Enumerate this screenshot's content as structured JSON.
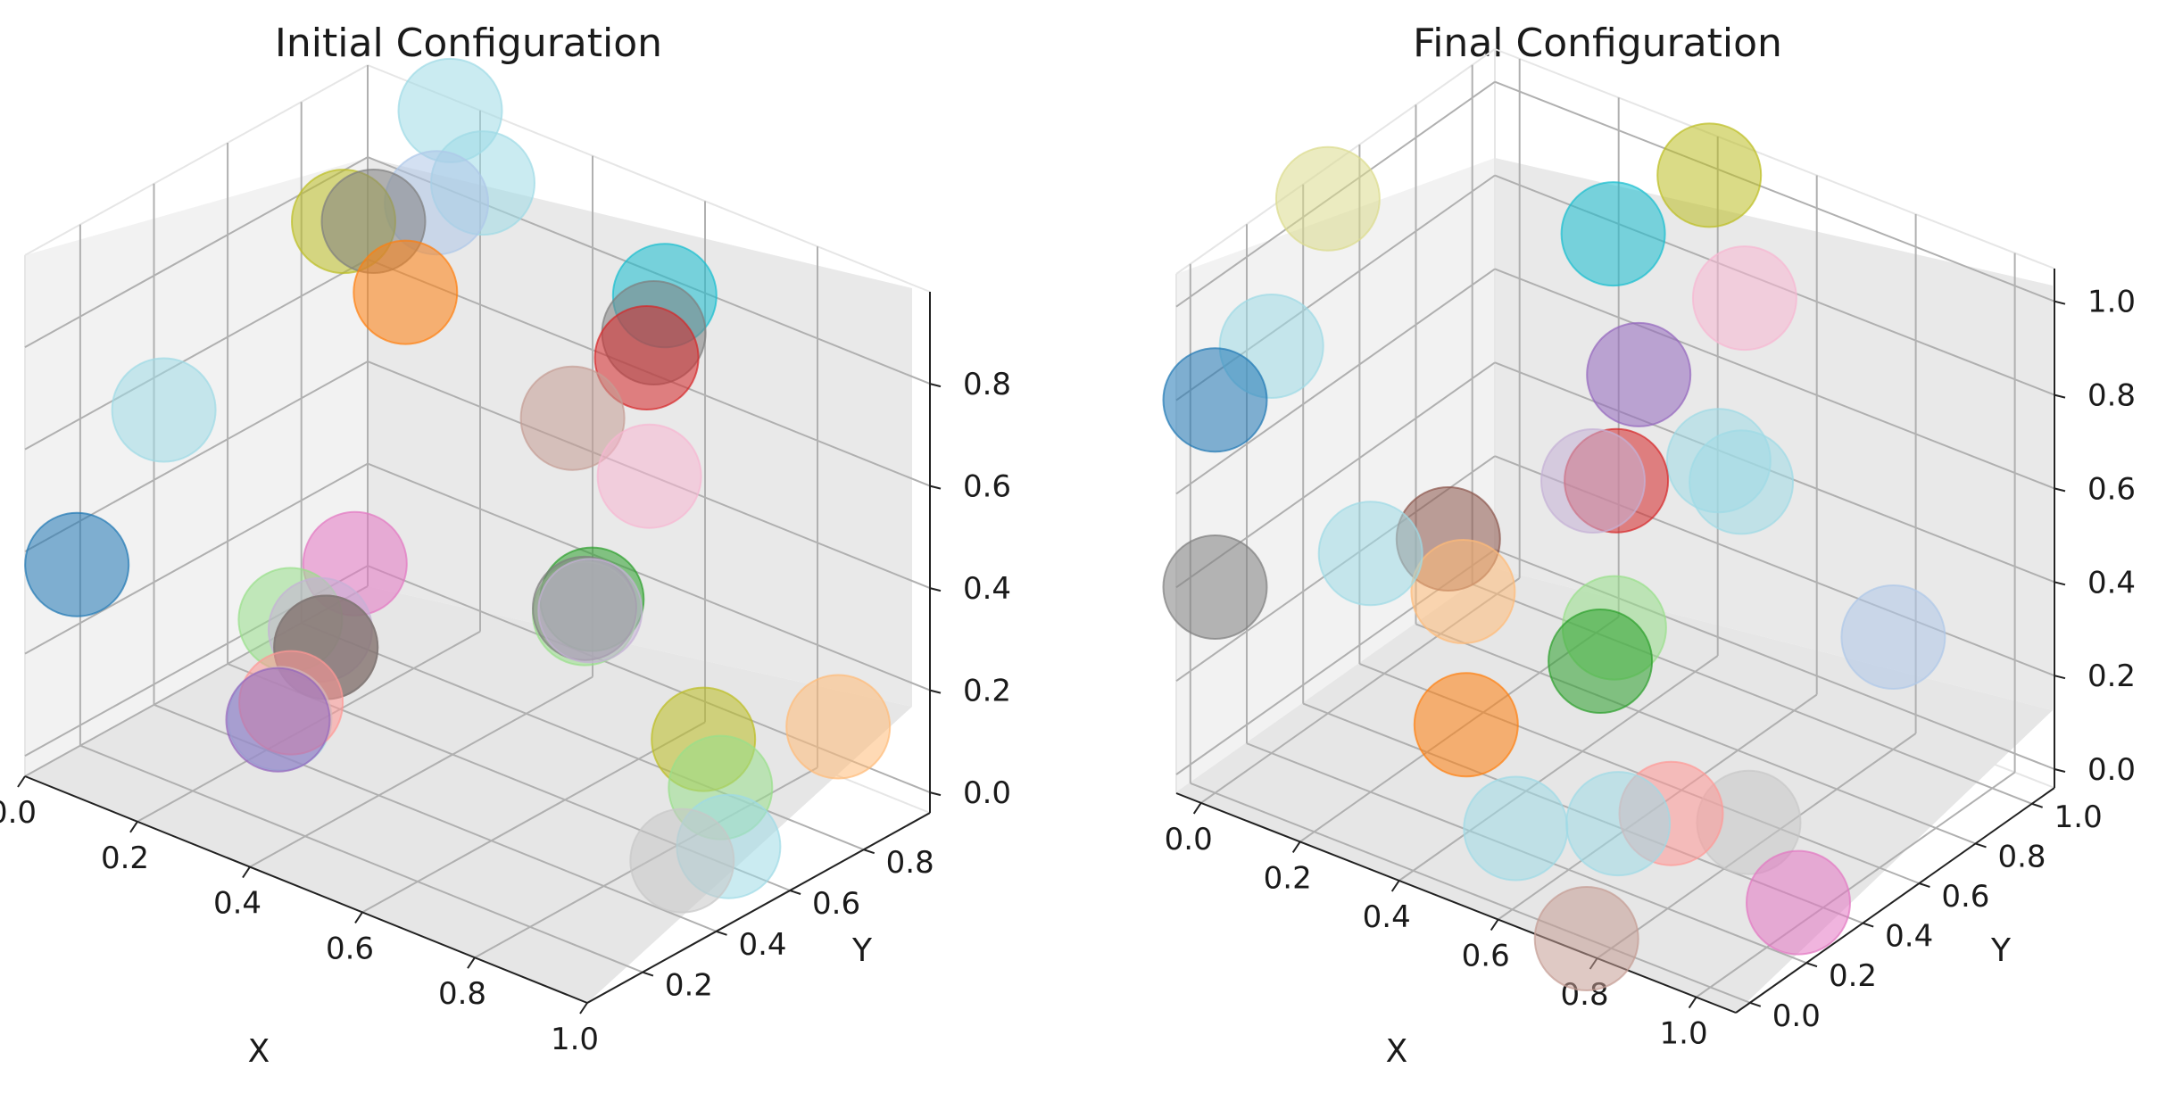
{
  "chart_data": [
    {
      "type": "scatter",
      "title": "Initial Configuration",
      "xlabel": "X",
      "ylabel": "Y",
      "xticks": [
        "0.0",
        "0.2",
        "0.4",
        "0.6",
        "0.8",
        "1.0"
      ],
      "yticks": [
        "0.2",
        "0.4",
        "0.6",
        "0.8"
      ],
      "zticks": [
        "0.0",
        "0.2",
        "0.4",
        "0.6",
        "0.8"
      ],
      "xlim": [
        0,
        1
      ],
      "ylim": [
        0.05,
        0.98
      ],
      "zlim": [
        -0.04,
        0.98
      ],
      "points": [
        {
          "color": "#1f77b4",
          "x": 0.04,
          "y": 0.13,
          "z": 0.36
        },
        {
          "color": "#9edae5",
          "x": 0.07,
          "y": 0.32,
          "z": 0.6
        },
        {
          "color": "#9467bd",
          "x": 0.45,
          "y": 0.05,
          "z": 0.27
        },
        {
          "color": "#9edae5",
          "x": 0.44,
          "y": 0.07,
          "z": 0.26
        },
        {
          "color": "#ff9896",
          "x": 0.46,
          "y": 0.07,
          "z": 0.3
        },
        {
          "color": "#98df8a",
          "x": 0.4,
          "y": 0.16,
          "z": 0.4
        },
        {
          "color": "#c5b0d5",
          "x": 0.44,
          "y": 0.18,
          "z": 0.39
        },
        {
          "color": "#8c564b",
          "x": 0.45,
          "y": 0.18,
          "z": 0.36
        },
        {
          "color": "#7f7f7f",
          "x": 0.45,
          "y": 0.18,
          "z": 0.36
        },
        {
          "color": "#e377c2",
          "x": 0.41,
          "y": 0.32,
          "z": 0.45
        },
        {
          "color": "#bcbd22",
          "x": 0.18,
          "y": 0.64,
          "z": 0.89
        },
        {
          "color": "#7f7f7f",
          "x": 0.22,
          "y": 0.66,
          "z": 0.9
        },
        {
          "color": "#ff7f0e",
          "x": 0.29,
          "y": 0.64,
          "z": 0.8
        },
        {
          "color": "#aec7e8",
          "x": 0.26,
          "y": 0.77,
          "z": 0.91
        },
        {
          "color": "#9edae5",
          "x": 0.29,
          "y": 0.85,
          "z": 0.93
        },
        {
          "color": "#9edae5",
          "x": 0.16,
          "y": 0.96,
          "z": 0.97
        },
        {
          "color": "#c49c94",
          "x": 0.62,
          "y": 0.59,
          "z": 0.72
        },
        {
          "color": "#d62728",
          "x": 0.66,
          "y": 0.73,
          "z": 0.8
        },
        {
          "color": "#17becf",
          "x": 0.62,
          "y": 0.84,
          "z": 0.86
        },
        {
          "color": "#7f7f7f",
          "x": 0.64,
          "y": 0.78,
          "z": 0.82
        },
        {
          "color": "#f7b6d2",
          "x": 0.75,
          "y": 0.6,
          "z": 0.66
        },
        {
          "color": "#c5b0d5",
          "x": 0.73,
          "y": 0.47,
          "z": 0.44
        },
        {
          "color": "#2ca02c",
          "x": 0.72,
          "y": 0.49,
          "z": 0.45
        },
        {
          "color": "#98df8a",
          "x": 0.72,
          "y": 0.47,
          "z": 0.43
        },
        {
          "color": "#7f7f7f",
          "x": 0.72,
          "y": 0.47,
          "z": 0.44
        },
        {
          "color": "#c7c7c7",
          "x": 0.9,
          "y": 0.46,
          "z": 0.03
        },
        {
          "color": "#bcbd22",
          "x": 0.82,
          "y": 0.64,
          "z": 0.16
        },
        {
          "color": "#9edae5",
          "x": 0.95,
          "y": 0.51,
          "z": 0.06
        },
        {
          "color": "#98df8a",
          "x": 0.87,
          "y": 0.61,
          "z": 0.1
        },
        {
          "color": "#ffbb78",
          "x": 0.85,
          "y": 0.96,
          "z": 0.07
        }
      ]
    },
    {
      "type": "scatter",
      "title": "Final Configuration",
      "xlabel": "X",
      "ylabel": "Y",
      "xticks": [
        "0.0",
        "0.2",
        "0.4",
        "0.6",
        "0.8",
        "1.0"
      ],
      "yticks": [
        "0.0",
        "0.2",
        "0.4",
        "0.6",
        "0.8",
        "1.0"
      ],
      "zticks": [
        "0.0",
        "0.2",
        "0.4",
        "0.6",
        "0.8",
        "1.0"
      ],
      "xlim": [
        -0.05,
        1.08
      ],
      "ylim": [
        -0.05,
        1.08
      ],
      "zlim": [
        -0.04,
        1.07
      ],
      "points": [
        {
          "color": "#1f77b4",
          "x": 0.0,
          "y": 0.0,
          "z": 0.8
        },
        {
          "color": "#7f7f7f",
          "x": 0.0,
          "y": 0.0,
          "z": 0.4
        },
        {
          "color": "#9edae5",
          "x": 0.0,
          "y": 0.2,
          "z": 0.83
        },
        {
          "color": "#dbdb8d",
          "x": 0.0,
          "y": 0.4,
          "z": 1.06
        },
        {
          "color": "#9edae5",
          "x": 0.2,
          "y": 0.2,
          "z": 0.47
        },
        {
          "color": "#8c564b",
          "x": 0.3,
          "y": 0.3,
          "z": 0.5
        },
        {
          "color": "#ffbb78",
          "x": 0.33,
          "y": 0.3,
          "z": 0.4
        },
        {
          "color": "#ff7f0e",
          "x": 0.45,
          "y": 0.1,
          "z": 0.25
        },
        {
          "color": "#9edae5",
          "x": 0.55,
          "y": 0.1,
          "z": 0.07
        },
        {
          "color": "#c49c94",
          "x": 0.75,
          "y": 0.0,
          "z": -0.04
        },
        {
          "color": "#17becf",
          "x": 0.28,
          "y": 0.92,
          "z": 0.88
        },
        {
          "color": "#c5b0d5",
          "x": 0.45,
          "y": 0.55,
          "z": 0.58
        },
        {
          "color": "#d62728",
          "x": 0.48,
          "y": 0.58,
          "z": 0.58
        },
        {
          "color": "#9467bd",
          "x": 0.4,
          "y": 0.8,
          "z": 0.68
        },
        {
          "color": "#9edae5",
          "x": 0.55,
          "y": 0.82,
          "z": 0.55
        },
        {
          "color": "#9edae5",
          "x": 0.55,
          "y": 0.9,
          "z": 0.47
        },
        {
          "color": "#98df8a",
          "x": 0.55,
          "y": 0.45,
          "z": 0.35
        },
        {
          "color": "#2ca02c",
          "x": 0.55,
          "y": 0.4,
          "z": 0.3
        },
        {
          "color": "#9edae5",
          "x": 0.7,
          "y": 0.2,
          "z": 0.1
        },
        {
          "color": "#ff9896",
          "x": 0.75,
          "y": 0.3,
          "z": 0.1
        },
        {
          "color": "#c7c7c7",
          "x": 0.85,
          "y": 0.4,
          "z": 0.08
        },
        {
          "color": "#e377c2",
          "x": 0.95,
          "y": 0.4,
          "z": -0.05
        },
        {
          "color": "#bcbd22",
          "x": 0.4,
          "y": 1.05,
          "z": 1.0
        },
        {
          "color": "#f7b6d2",
          "x": 0.5,
          "y": 1.0,
          "z": 0.8
        },
        {
          "color": "#aec7e8",
          "x": 0.8,
          "y": 1.0,
          "z": 0.2
        }
      ]
    }
  ]
}
